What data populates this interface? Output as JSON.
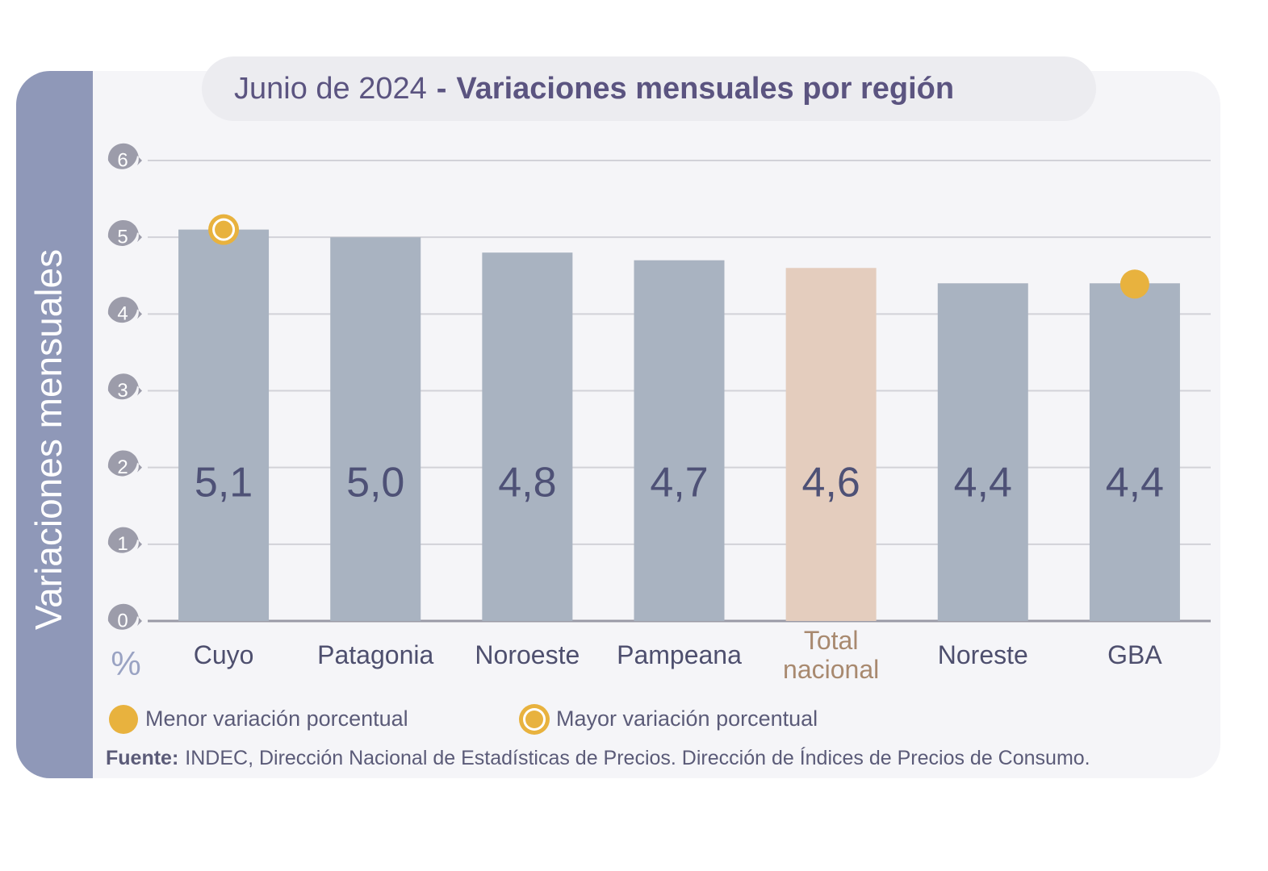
{
  "chart_data": {
    "type": "bar",
    "title": {
      "date": "Junio de 2024",
      "separator": "-",
      "main": "Variaciones mensuales por región"
    },
    "y_label": "Variaciones mensuales",
    "y_unit": "%",
    "categories": [
      "Cuyo",
      "Patagonia",
      "Noroeste",
      "Pampeana",
      "Total nacional",
      "Noreste",
      "GBA"
    ],
    "values": [
      5.1,
      5.0,
      4.8,
      4.7,
      4.6,
      4.4,
      4.4
    ],
    "value_labels": [
      "5,1",
      "5,0",
      "4,8",
      "4,7",
      "4,6",
      "4,4",
      "4,4"
    ],
    "color": "#a9b3c1",
    "highlight": {
      "category": 4,
      "color": "#e4cdbe",
      "label_color": "#a8896f"
    },
    "ylim": [
      0,
      6
    ],
    "yticks": [
      0,
      1,
      2,
      3,
      4,
      5,
      6
    ],
    "grid": true,
    "legend": [
      {
        "name": "Menor variación porcentual",
        "style": "dot",
        "category": 6,
        "color": "#e8b23e"
      },
      {
        "name": "Mayor variación porcentual",
        "style": "ring",
        "category": 0,
        "color": "#e8b23e"
      }
    ],
    "source": {
      "label": "Fuente:",
      "text": "INDEC, Dirección Nacional de Estadísticas de Precios. Dirección de Índices de Precios de Consumo."
    }
  }
}
